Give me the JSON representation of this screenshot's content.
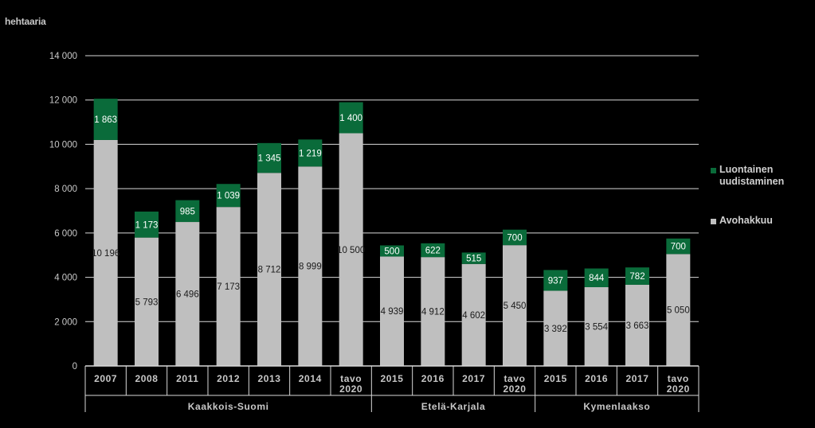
{
  "chart_data": {
    "type": "bar",
    "stacked": true,
    "ylabel": "hehtaaria",
    "ylim": [
      0,
      14000
    ],
    "yticks": [
      "0",
      "2 000",
      "4 000",
      "6 000",
      "8 000",
      "10 000",
      "12 000",
      "14 000"
    ],
    "grid": true,
    "legend_position": "right",
    "categories": [
      {
        "label": [
          "2007"
        ],
        "group": "Kaakkois-Suomi"
      },
      {
        "label": [
          "2008"
        ],
        "group": "Kaakkois-Suomi"
      },
      {
        "label": [
          "2011"
        ],
        "group": "Kaakkois-Suomi"
      },
      {
        "label": [
          "2012"
        ],
        "group": "Kaakkois-Suomi"
      },
      {
        "label": [
          "2013"
        ],
        "group": "Kaakkois-Suomi"
      },
      {
        "label": [
          "2014"
        ],
        "group": "Kaakkois-Suomi"
      },
      {
        "label": [
          "tavo",
          "2020"
        ],
        "group": "Kaakkois-Suomi"
      },
      {
        "label": [
          "2015"
        ],
        "group": "Etelä-Karjala"
      },
      {
        "label": [
          "2016"
        ],
        "group": "Etelä-Karjala"
      },
      {
        "label": [
          "2017"
        ],
        "group": "Etelä-Karjala"
      },
      {
        "label": [
          "tavo",
          "2020"
        ],
        "group": "Etelä-Karjala"
      },
      {
        "label": [
          "2015"
        ],
        "group": "Kymenlaakso"
      },
      {
        "label": [
          "2016"
        ],
        "group": "Kymenlaakso"
      },
      {
        "label": [
          "2017"
        ],
        "group": "Kymenlaakso"
      },
      {
        "label": [
          "tavo",
          "2020"
        ],
        "group": "Kymenlaakso"
      }
    ],
    "groups": [
      "Kaakkois-Suomi",
      "Etelä-Karjala",
      "Kymenlaakso"
    ],
    "series": [
      {
        "name": "Avohakkuu",
        "color": "#bfbfbf",
        "values": [
          10196,
          5793,
          6496,
          7173,
          8712,
          8999,
          10500,
          4939,
          4912,
          4602,
          5450,
          3392,
          3554,
          3663,
          5050
        ],
        "value_labels": [
          "10 196",
          "5 793",
          "6 496",
          "7 173",
          "8 712",
          "8 999",
          "10 500",
          "4 939",
          "4 912",
          "4 602",
          "5 450",
          "3 392",
          "3 554",
          "3 663",
          "5 050"
        ]
      },
      {
        "name": "Luontainen uudistaminen",
        "color": "#0a6b3a",
        "values": [
          1863,
          1173,
          985,
          1039,
          1345,
          1219,
          1400,
          500,
          622,
          515,
          700,
          937,
          844,
          782,
          700
        ],
        "value_labels": [
          "1 863",
          "1 173",
          "985",
          "1 039",
          "1 345",
          "1 219",
          "1 400",
          "500",
          "622",
          "515",
          "700",
          "937",
          "844",
          "782",
          "700"
        ]
      }
    ],
    "legend": [
      {
        "lines": [
          "Luontainen",
          "uudistaminen"
        ],
        "color": "#0a6b3a"
      },
      {
        "lines": [
          "Avohakkuu"
        ],
        "color": "#bfbfbf"
      }
    ]
  }
}
